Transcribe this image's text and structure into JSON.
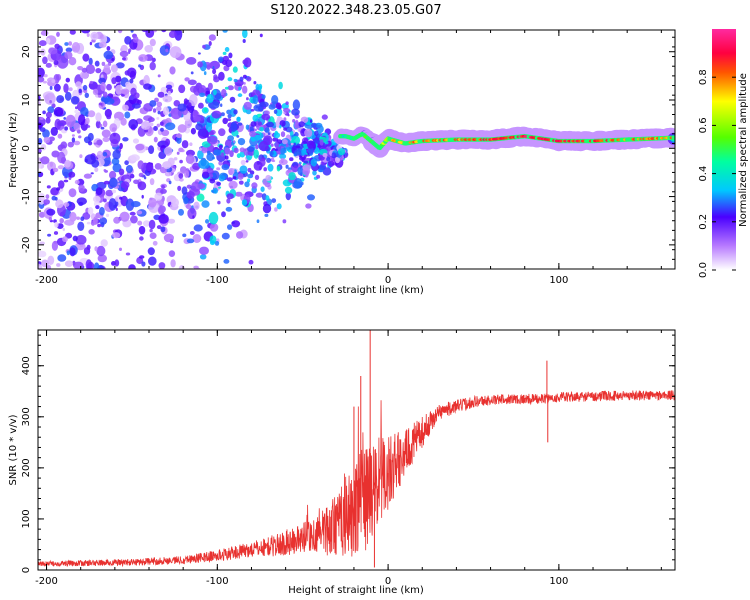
{
  "title": "S120.2022.348.23.05.G07",
  "chart_data": [
    {
      "type": "heatmap",
      "xlabel": "Height of straight line (km)",
      "ylabel": "Frequency (Hz)",
      "xlim": [
        -205,
        168
      ],
      "ylim": [
        -25,
        24.5
      ],
      "xticks": [
        -200,
        -100,
        0,
        100
      ],
      "yticks": [
        -20,
        -10,
        0,
        10,
        20
      ],
      "xtick_labels": [
        "-200",
        "-100",
        "0",
        "100"
      ],
      "ytick_labels": [
        "-20",
        "-10",
        "0",
        "10",
        "20"
      ],
      "colorbar": {
        "label": "Normalized spectral amplitude",
        "range": [
          0,
          1
        ],
        "ticks": [
          0.0,
          0.2,
          0.4,
          0.6,
          0.8
        ],
        "tick_labels": [
          "0.0",
          "0.2",
          "0.4",
          "0.6",
          "0.8"
        ],
        "colormap": "gist_ncar-like (white → violet → blue → cyan → green → yellow → red → magenta)"
      },
      "ridge": {
        "x": [
          -25,
          -20,
          -15,
          -10,
          -5,
          0,
          10,
          20,
          40,
          60,
          80,
          100,
          120,
          140,
          168
        ],
        "y": [
          2.5,
          2,
          3,
          1.5,
          0,
          2,
          1,
          1.5,
          1.8,
          1.8,
          2.5,
          1.5,
          1.5,
          1.8,
          2.2
        ],
        "amplitude": [
          0.35,
          0.45,
          0.5,
          0.55,
          0.5,
          0.7,
          0.75,
          0.8,
          0.8,
          0.85,
          0.9,
          0.88,
          0.85,
          0.8,
          0.75
        ]
      }
    },
    {
      "type": "line",
      "xlabel": "Height of straight line (km)",
      "ylabel": "SNR (10 * v/v)",
      "xlim": [
        -205,
        168
      ],
      "ylim": [
        0,
        470
      ],
      "xticks": [
        -200,
        -100,
        0,
        100
      ],
      "yticks": [
        0,
        100,
        200,
        300,
        400
      ],
      "xtick_labels": [
        "-200",
        "-100",
        "0",
        "100"
      ],
      "ytick_labels": [
        "0",
        "100",
        "200",
        "300",
        "400"
      ],
      "series": [
        {
          "color": "#e8312f",
          "trend": {
            "x": [
              -205,
              -150,
              -120,
              -100,
              -80,
              -60,
              -40,
              -30,
              -20,
              -12,
              -8,
              0,
              10,
              20,
              30,
              50,
              70,
              90,
              100,
              120,
              140,
              168
            ],
            "y": [
              12,
              15,
              20,
              28,
              40,
              52,
              70,
              90,
              110,
              140,
              160,
              190,
              230,
              270,
              310,
              330,
              335,
              335,
              338,
              340,
              342,
              342
            ]
          },
          "noise": {
            "x": [
              -205,
              -120,
              -80,
              -50,
              -30,
              -15,
              -5,
              10,
              30,
              60,
              168
            ],
            "amplitude": [
              5,
              8,
              15,
              30,
              60,
              110,
              90,
              45,
              15,
              10,
              10
            ]
          },
          "spikes": [
            {
              "x": -10.5,
              "y": 470
            },
            {
              "x": -16,
              "y": 380
            },
            {
              "x": -20,
              "y": 320
            },
            {
              "x": -8,
              "y": 5
            },
            {
              "x": 93,
              "y": 410
            },
            {
              "x": 93.5,
              "y": 250
            }
          ]
        }
      ]
    }
  ]
}
